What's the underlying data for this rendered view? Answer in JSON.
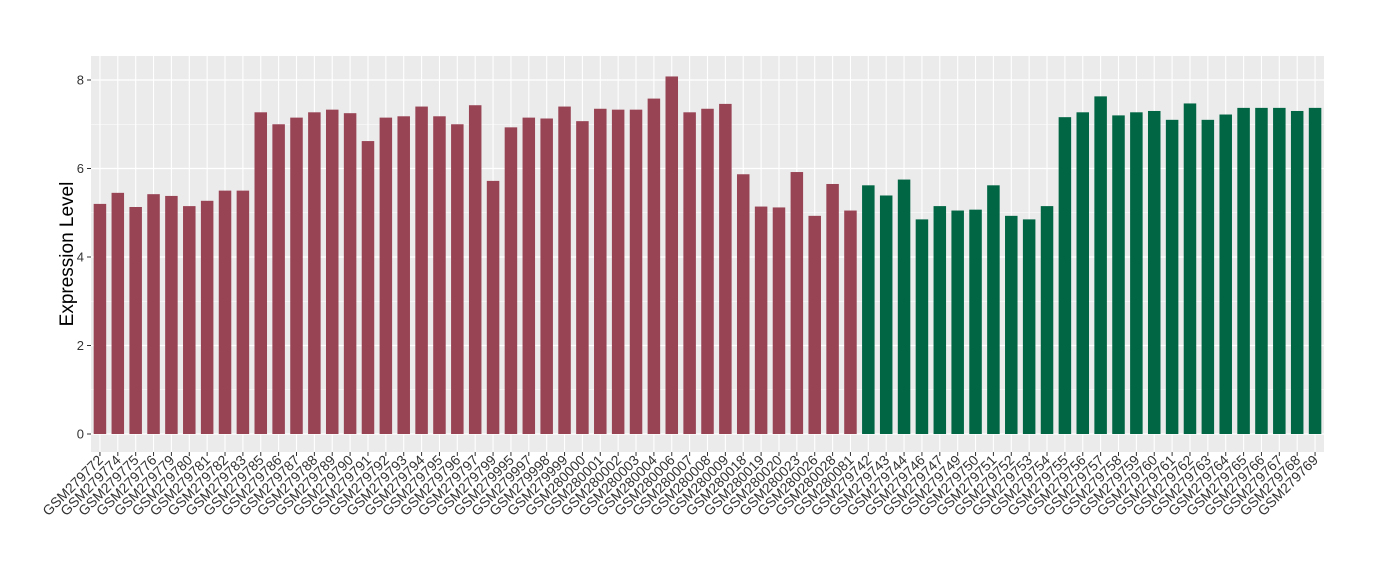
{
  "chart_data": {
    "type": "bar",
    "title": "",
    "xlabel": "",
    "ylabel": "Expression Level",
    "ylim": [
      0,
      8.4
    ],
    "yticks": [
      0,
      2,
      4,
      6,
      8
    ],
    "grid": true,
    "background": "#EBEBEB",
    "categories": [
      "GSM279772",
      "GSM279774",
      "GSM279775",
      "GSM279776",
      "GSM279779",
      "GSM279780",
      "GSM279781",
      "GSM279782",
      "GSM279783",
      "GSM279785",
      "GSM279786",
      "GSM279787",
      "GSM279788",
      "GSM279789",
      "GSM279790",
      "GSM279791",
      "GSM279792",
      "GSM279793",
      "GSM279794",
      "GSM279795",
      "GSM279796",
      "GSM279797",
      "GSM279799",
      "GSM279995",
      "GSM279997",
      "GSM279998",
      "GSM279999",
      "GSM280000",
      "GSM280001",
      "GSM280002",
      "GSM280003",
      "GSM280004",
      "GSM280006",
      "GSM280007",
      "GSM280008",
      "GSM280009",
      "GSM280018",
      "GSM280019",
      "GSM280020",
      "GSM280023",
      "GSM280026",
      "GSM280028",
      "GSM280081",
      "GSM279742",
      "GSM279743",
      "GSM279744",
      "GSM279746",
      "GSM279747",
      "GSM279749",
      "GSM279750",
      "GSM279751",
      "GSM279752",
      "GSM279753",
      "GSM279754",
      "GSM279755",
      "GSM279756",
      "GSM279757",
      "GSM279758",
      "GSM279759",
      "GSM279760",
      "GSM279761",
      "GSM279762",
      "GSM279763",
      "GSM279764",
      "GSM279765",
      "GSM279766",
      "GSM279767",
      "GSM279768",
      "GSM279769"
    ],
    "values": [
      5.2,
      5.45,
      5.13,
      5.42,
      5.38,
      5.15,
      5.27,
      5.5,
      5.5,
      7.27,
      7.0,
      7.15,
      7.27,
      7.33,
      7.25,
      6.62,
      7.15,
      7.18,
      7.4,
      7.18,
      7.0,
      7.43,
      5.72,
      6.93,
      7.15,
      7.13,
      7.4,
      7.07,
      7.35,
      7.33,
      7.33,
      7.58,
      8.08,
      7.27,
      7.35,
      7.46,
      5.87,
      5.14,
      5.12,
      5.92,
      4.93,
      5.65,
      5.05,
      5.62,
      5.39,
      5.75,
      4.85,
      5.15,
      5.05,
      5.07,
      5.62,
      4.93,
      4.85,
      5.15,
      7.16,
      7.27,
      7.63,
      7.2,
      7.27,
      7.3,
      7.1,
      7.47,
      7.1,
      7.22,
      7.37,
      7.37,
      7.37,
      7.3,
      7.37
    ],
    "group_sizes": [
      43,
      26
    ],
    "colors": [
      "#994455",
      "#006644"
    ]
  }
}
